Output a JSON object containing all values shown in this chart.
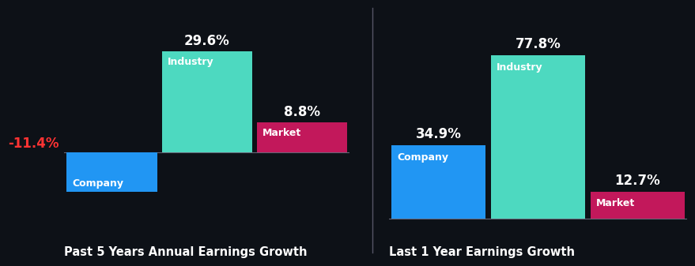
{
  "background_color": "#0d1117",
  "left_title": "Past 5 Years Annual Earnings Growth",
  "right_title": "Last 1 Year Earnings Growth",
  "title_color": "#ffffff",
  "title_fontsize": 10.5,
  "divider_color": "#555566",
  "left_bars": [
    {
      "label": "Company",
      "value": -11.4,
      "color": "#2196f3",
      "text_color": "#ff3333"
    },
    {
      "label": "Industry",
      "value": 29.6,
      "color": "#4dd9c0",
      "text_color": "#ffffff"
    },
    {
      "label": "Market",
      "value": 8.8,
      "color": "#c2185b",
      "text_color": "#ffffff"
    }
  ],
  "right_bars": [
    {
      "label": "Company",
      "value": 34.9,
      "color": "#2196f3",
      "text_color": "#ffffff"
    },
    {
      "label": "Industry",
      "value": 77.8,
      "color": "#4dd9c0",
      "text_color": "#ffffff"
    },
    {
      "label": "Market",
      "value": 12.7,
      "color": "#c2185b",
      "text_color": "#ffffff"
    }
  ],
  "label_fontsize": 9,
  "value_fontsize": 12
}
